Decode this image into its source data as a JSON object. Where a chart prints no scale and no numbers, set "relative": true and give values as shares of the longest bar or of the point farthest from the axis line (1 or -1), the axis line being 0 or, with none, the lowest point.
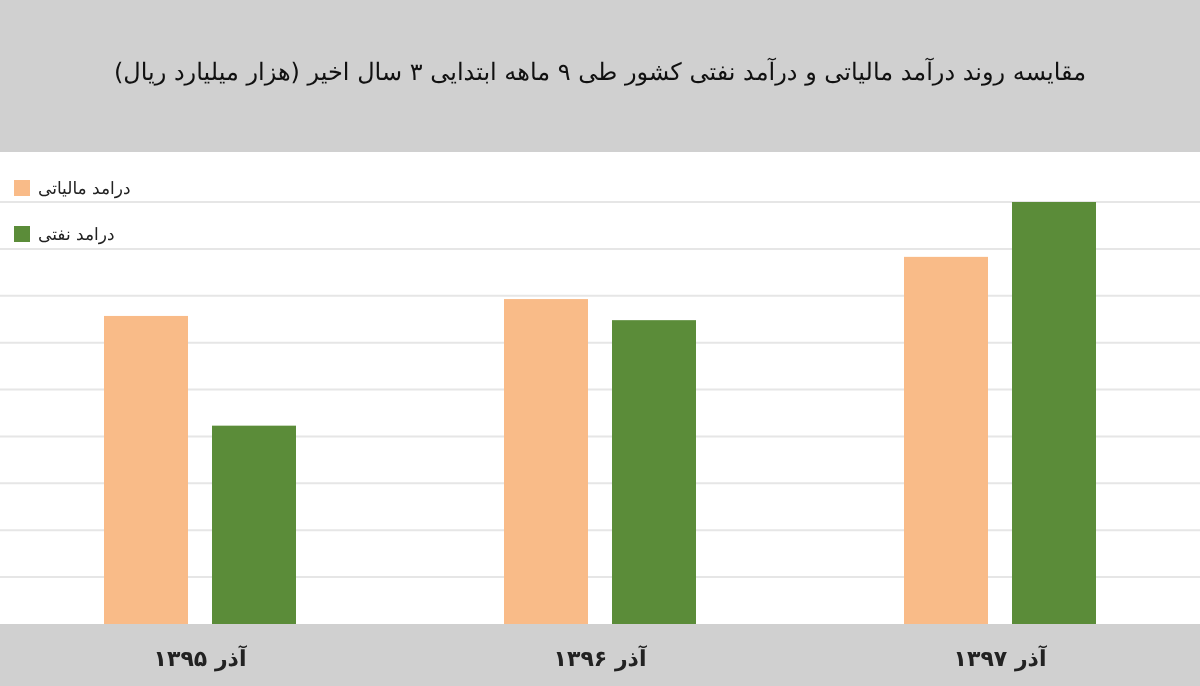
{
  "chart_data": {
    "type": "bar",
    "title": "مقایسه روند درآمد مالیاتی و درآمد نفتی کشور طی ۹ ماهه ابتدایی ۳ سال اخیر (هزار میلیارد ریال)",
    "categories": [
      "آذر ۱۳۹۵",
      "آذر ۱۳۹۶",
      "آذر ۱۳۹۷"
    ],
    "relative": true,
    "grid": "y",
    "legend": "top left",
    "series": [
      {
        "name": "درامد مالیاتی",
        "color": "#f9bb88",
        "values": [
          0.73,
          0.77,
          0.87
        ]
      },
      {
        "name": "درامد نفتی",
        "color": "#5b8c39",
        "values": [
          0.47,
          0.72,
          1
        ]
      }
    ]
  }
}
